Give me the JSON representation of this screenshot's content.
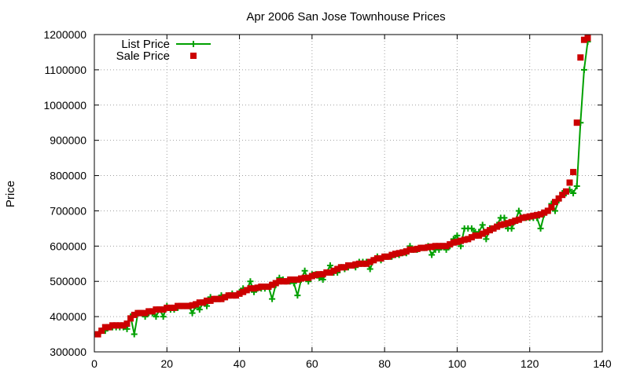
{
  "chart_data": {
    "type": "line",
    "title": "Apr 2006 San Jose Townhouse Prices",
    "xlabel": "",
    "ylabel": "Price",
    "xlim": [
      0,
      140
    ],
    "ylim": [
      300000,
      1200000
    ],
    "xticks": [
      "0",
      "20",
      "40",
      "60",
      "80",
      "100",
      "120",
      "140"
    ],
    "yticks": [
      "300000",
      "400000",
      "500000",
      "600000",
      "700000",
      "800000",
      "900000",
      "1000000",
      "1100000",
      "1200000"
    ],
    "grid": true,
    "legend_position": "top-left",
    "series": [
      {
        "name": "List Price",
        "style": "lines+crosses",
        "color": "#00a000",
        "x": [
          1,
          2,
          3,
          4,
          5,
          6,
          7,
          8,
          9,
          10,
          11,
          12,
          13,
          14,
          15,
          16,
          17,
          18,
          19,
          20,
          21,
          22,
          23,
          24,
          25,
          26,
          27,
          28,
          29,
          30,
          31,
          32,
          33,
          34,
          35,
          36,
          37,
          38,
          39,
          40,
          41,
          42,
          43,
          44,
          45,
          46,
          47,
          48,
          49,
          50,
          51,
          52,
          53,
          54,
          55,
          56,
          57,
          58,
          59,
          60,
          61,
          62,
          63,
          64,
          65,
          66,
          67,
          68,
          69,
          70,
          71,
          72,
          73,
          74,
          75,
          76,
          77,
          78,
          79,
          80,
          81,
          82,
          83,
          84,
          85,
          86,
          87,
          88,
          89,
          90,
          91,
          92,
          93,
          94,
          95,
          96,
          97,
          98,
          99,
          100,
          101,
          102,
          103,
          104,
          105,
          106,
          107,
          108,
          109,
          110,
          111,
          112,
          113,
          114,
          115,
          116,
          117,
          118,
          119,
          120,
          121,
          122,
          123,
          124,
          125,
          126,
          127,
          128,
          129,
          130,
          131,
          132,
          133,
          134,
          135,
          136
        ],
        "y": [
          350000,
          360000,
          360000,
          370000,
          370000,
          370000,
          370000,
          370000,
          365000,
          400000,
          350000,
          410000,
          410000,
          400000,
          410000,
          410000,
          400000,
          420000,
          400000,
          430000,
          420000,
          420000,
          425000,
          430000,
          430000,
          430000,
          410000,
          430000,
          420000,
          440000,
          430000,
          455000,
          450000,
          450000,
          460000,
          455000,
          460000,
          465000,
          460000,
          470000,
          480000,
          475000,
          500000,
          470000,
          480000,
          480000,
          480000,
          485000,
          450000,
          490000,
          510000,
          505000,
          500000,
          500000,
          495000,
          460000,
          505000,
          530000,
          500000,
          520000,
          520000,
          510000,
          505000,
          525000,
          545000,
          525000,
          525000,
          540000,
          535000,
          540000,
          545000,
          540000,
          555000,
          555000,
          555000,
          535000,
          560000,
          570000,
          560000,
          570000,
          570000,
          570000,
          575000,
          575000,
          580000,
          580000,
          600000,
          590000,
          590000,
          595000,
          595000,
          600000,
          575000,
          590000,
          590000,
          600000,
          590000,
          600000,
          620000,
          630000,
          600000,
          650000,
          650000,
          650000,
          640000,
          640000,
          660000,
          620000,
          650000,
          650000,
          660000,
          680000,
          680000,
          650000,
          650000,
          670000,
          700000,
          680000,
          680000,
          680000,
          680000,
          680000,
          650000,
          690000,
          700000,
          720000,
          700000,
          730000,
          750000,
          750000,
          760000,
          750000,
          770000,
          950000,
          1100000,
          1180000
        ]
      },
      {
        "name": "Sale Price",
        "style": "points-squares",
        "color": "#cc0000",
        "x": [
          1,
          2,
          3,
          4,
          5,
          6,
          7,
          8,
          9,
          10,
          11,
          12,
          13,
          14,
          15,
          16,
          17,
          18,
          19,
          20,
          21,
          22,
          23,
          24,
          25,
          26,
          27,
          28,
          29,
          30,
          31,
          32,
          33,
          34,
          35,
          36,
          37,
          38,
          39,
          40,
          41,
          42,
          43,
          44,
          45,
          46,
          47,
          48,
          49,
          50,
          51,
          52,
          53,
          54,
          55,
          56,
          57,
          58,
          59,
          60,
          61,
          62,
          63,
          64,
          65,
          66,
          67,
          68,
          69,
          70,
          71,
          72,
          73,
          74,
          75,
          76,
          77,
          78,
          79,
          80,
          81,
          82,
          83,
          84,
          85,
          86,
          87,
          88,
          89,
          90,
          91,
          92,
          93,
          94,
          95,
          96,
          97,
          98,
          99,
          100,
          101,
          102,
          103,
          104,
          105,
          106,
          107,
          108,
          109,
          110,
          111,
          112,
          113,
          114,
          115,
          116,
          117,
          118,
          119,
          120,
          121,
          122,
          123,
          124,
          125,
          126,
          127,
          128,
          129,
          130,
          131,
          132,
          133,
          134,
          135,
          136
        ],
        "y": [
          350000,
          360000,
          370000,
          370000,
          375000,
          375000,
          375000,
          375000,
          380000,
          395000,
          405000,
          410000,
          410000,
          410000,
          415000,
          415000,
          420000,
          420000,
          420000,
          425000,
          425000,
          425000,
          430000,
          430000,
          430000,
          430000,
          432000,
          435000,
          440000,
          440000,
          445000,
          445000,
          450000,
          450000,
          450000,
          455000,
          460000,
          460000,
          460000,
          465000,
          470000,
          475000,
          480000,
          480000,
          482000,
          485000,
          485000,
          485000,
          490000,
          495000,
          500000,
          500000,
          500000,
          505000,
          505000,
          505000,
          508000,
          510000,
          510000,
          515000,
          518000,
          520000,
          520000,
          525000,
          525000,
          530000,
          535000,
          540000,
          540000,
          545000,
          545000,
          548000,
          550000,
          550000,
          550000,
          555000,
          560000,
          565000,
          565000,
          570000,
          570000,
          575000,
          578000,
          580000,
          582000,
          585000,
          590000,
          590000,
          592000,
          595000,
          595000,
          597000,
          598000,
          600000,
          600000,
          600000,
          600000,
          605000,
          610000,
          612000,
          615000,
          618000,
          620000,
          625000,
          630000,
          630000,
          635000,
          640000,
          645000,
          650000,
          655000,
          660000,
          662000,
          665000,
          668000,
          672000,
          675000,
          680000,
          682000,
          684000,
          686000,
          688000,
          690000,
          695000,
          700000,
          710000,
          725000,
          735000,
          745000,
          755000,
          780000,
          810000,
          950000,
          1135000,
          1185000,
          1190000
        ]
      }
    ]
  }
}
